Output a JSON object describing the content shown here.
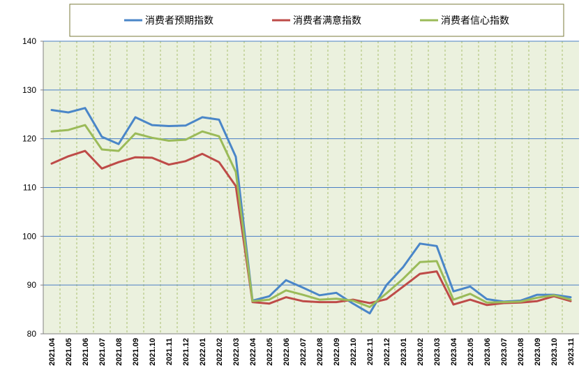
{
  "chart_data": {
    "type": "line",
    "x": [
      "2021.04",
      "2021.05",
      "2021.06",
      "2021.07",
      "2021.08",
      "2021.09",
      "2021.10",
      "2021.11",
      "2021.12",
      "2022.01",
      "2022.02",
      "2022.03",
      "2022.04",
      "2022.05",
      "2022.06",
      "2022.07",
      "2022.08",
      "2022.09",
      "2022.10",
      "2022.11",
      "2022.12",
      "2023.01",
      "2023.02",
      "2023.03",
      "2023.04",
      "2023.05",
      "2023.06",
      "2023.07",
      "2023.08",
      "2023.09",
      "2023.10",
      "2023.11"
    ],
    "series": [
      {
        "name": "消费者预期指数",
        "color": "#4a86c8",
        "values": [
          125.9,
          125.4,
          126.3,
          120.4,
          118.9,
          124.4,
          122.8,
          122.6,
          122.7,
          124.4,
          123.9,
          116.3,
          86.8,
          87.7,
          91.0,
          89.5,
          87.9,
          88.4,
          86.2,
          84.2,
          90.0,
          93.7,
          98.5,
          98.0,
          88.7,
          89.7,
          87.1,
          86.6,
          86.8,
          88.0,
          88.0,
          87.5
        ]
      },
      {
        "name": "消费者满意指数",
        "color": "#be4b48",
        "values": [
          114.9,
          116.4,
          117.5,
          113.9,
          115.2,
          116.2,
          116.1,
          114.7,
          115.4,
          116.9,
          115.2,
          110.3,
          86.5,
          86.2,
          87.5,
          86.7,
          86.5,
          86.5,
          87.0,
          86.3,
          87.1,
          89.7,
          92.3,
          92.8,
          86.0,
          87.0,
          85.9,
          86.3,
          86.4,
          86.7,
          87.7,
          86.7
        ]
      },
      {
        "name": "消费者信心指数",
        "color": "#9bbb59",
        "values": [
          121.5,
          121.8,
          122.8,
          117.8,
          117.5,
          121.1,
          120.2,
          119.6,
          119.8,
          121.5,
          120.5,
          113.2,
          86.7,
          87.0,
          88.9,
          88.0,
          87.0,
          87.2,
          86.8,
          85.5,
          88.3,
          91.3,
          94.7,
          94.9,
          87.0,
          88.2,
          86.4,
          86.5,
          86.6,
          87.4,
          87.9,
          87.0
        ]
      }
    ],
    "ylim": [
      80,
      140
    ],
    "yticks": [
      80,
      90,
      100,
      110,
      120,
      130,
      140
    ],
    "grid": true,
    "legend": "top-center"
  }
}
